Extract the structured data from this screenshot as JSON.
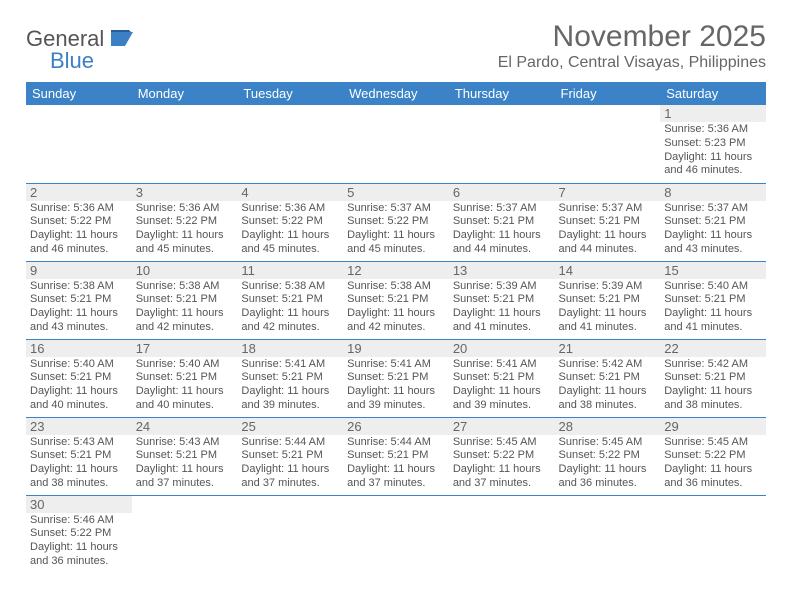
{
  "logo": {
    "text1": "General",
    "text2": "Blue"
  },
  "header": {
    "month_title": "November 2025",
    "location": "El Pardo, Central Visayas, Philippines"
  },
  "colors": {
    "header_bg": "#3b82c7",
    "header_text": "#ffffff",
    "body_text": "#555555",
    "daynum_bg": "#eeeeee",
    "border": "#3b82c7",
    "logo_accent": "#3b7fc4"
  },
  "day_names": [
    "Sunday",
    "Monday",
    "Tuesday",
    "Wednesday",
    "Thursday",
    "Friday",
    "Saturday"
  ],
  "weeks": [
    [
      null,
      null,
      null,
      null,
      null,
      null,
      {
        "n": "1",
        "sr": "Sunrise: 5:36 AM",
        "ss": "Sunset: 5:23 PM",
        "dl1": "Daylight: 11 hours",
        "dl2": "and 46 minutes."
      }
    ],
    [
      {
        "n": "2",
        "sr": "Sunrise: 5:36 AM",
        "ss": "Sunset: 5:22 PM",
        "dl1": "Daylight: 11 hours",
        "dl2": "and 46 minutes."
      },
      {
        "n": "3",
        "sr": "Sunrise: 5:36 AM",
        "ss": "Sunset: 5:22 PM",
        "dl1": "Daylight: 11 hours",
        "dl2": "and 45 minutes."
      },
      {
        "n": "4",
        "sr": "Sunrise: 5:36 AM",
        "ss": "Sunset: 5:22 PM",
        "dl1": "Daylight: 11 hours",
        "dl2": "and 45 minutes."
      },
      {
        "n": "5",
        "sr": "Sunrise: 5:37 AM",
        "ss": "Sunset: 5:22 PM",
        "dl1": "Daylight: 11 hours",
        "dl2": "and 45 minutes."
      },
      {
        "n": "6",
        "sr": "Sunrise: 5:37 AM",
        "ss": "Sunset: 5:21 PM",
        "dl1": "Daylight: 11 hours",
        "dl2": "and 44 minutes."
      },
      {
        "n": "7",
        "sr": "Sunrise: 5:37 AM",
        "ss": "Sunset: 5:21 PM",
        "dl1": "Daylight: 11 hours",
        "dl2": "and 44 minutes."
      },
      {
        "n": "8",
        "sr": "Sunrise: 5:37 AM",
        "ss": "Sunset: 5:21 PM",
        "dl1": "Daylight: 11 hours",
        "dl2": "and 43 minutes."
      }
    ],
    [
      {
        "n": "9",
        "sr": "Sunrise: 5:38 AM",
        "ss": "Sunset: 5:21 PM",
        "dl1": "Daylight: 11 hours",
        "dl2": "and 43 minutes."
      },
      {
        "n": "10",
        "sr": "Sunrise: 5:38 AM",
        "ss": "Sunset: 5:21 PM",
        "dl1": "Daylight: 11 hours",
        "dl2": "and 42 minutes."
      },
      {
        "n": "11",
        "sr": "Sunrise: 5:38 AM",
        "ss": "Sunset: 5:21 PM",
        "dl1": "Daylight: 11 hours",
        "dl2": "and 42 minutes."
      },
      {
        "n": "12",
        "sr": "Sunrise: 5:38 AM",
        "ss": "Sunset: 5:21 PM",
        "dl1": "Daylight: 11 hours",
        "dl2": "and 42 minutes."
      },
      {
        "n": "13",
        "sr": "Sunrise: 5:39 AM",
        "ss": "Sunset: 5:21 PM",
        "dl1": "Daylight: 11 hours",
        "dl2": "and 41 minutes."
      },
      {
        "n": "14",
        "sr": "Sunrise: 5:39 AM",
        "ss": "Sunset: 5:21 PM",
        "dl1": "Daylight: 11 hours",
        "dl2": "and 41 minutes."
      },
      {
        "n": "15",
        "sr": "Sunrise: 5:40 AM",
        "ss": "Sunset: 5:21 PM",
        "dl1": "Daylight: 11 hours",
        "dl2": "and 41 minutes."
      }
    ],
    [
      {
        "n": "16",
        "sr": "Sunrise: 5:40 AM",
        "ss": "Sunset: 5:21 PM",
        "dl1": "Daylight: 11 hours",
        "dl2": "and 40 minutes."
      },
      {
        "n": "17",
        "sr": "Sunrise: 5:40 AM",
        "ss": "Sunset: 5:21 PM",
        "dl1": "Daylight: 11 hours",
        "dl2": "and 40 minutes."
      },
      {
        "n": "18",
        "sr": "Sunrise: 5:41 AM",
        "ss": "Sunset: 5:21 PM",
        "dl1": "Daylight: 11 hours",
        "dl2": "and 39 minutes."
      },
      {
        "n": "19",
        "sr": "Sunrise: 5:41 AM",
        "ss": "Sunset: 5:21 PM",
        "dl1": "Daylight: 11 hours",
        "dl2": "and 39 minutes."
      },
      {
        "n": "20",
        "sr": "Sunrise: 5:41 AM",
        "ss": "Sunset: 5:21 PM",
        "dl1": "Daylight: 11 hours",
        "dl2": "and 39 minutes."
      },
      {
        "n": "21",
        "sr": "Sunrise: 5:42 AM",
        "ss": "Sunset: 5:21 PM",
        "dl1": "Daylight: 11 hours",
        "dl2": "and 38 minutes."
      },
      {
        "n": "22",
        "sr": "Sunrise: 5:42 AM",
        "ss": "Sunset: 5:21 PM",
        "dl1": "Daylight: 11 hours",
        "dl2": "and 38 minutes."
      }
    ],
    [
      {
        "n": "23",
        "sr": "Sunrise: 5:43 AM",
        "ss": "Sunset: 5:21 PM",
        "dl1": "Daylight: 11 hours",
        "dl2": "and 38 minutes."
      },
      {
        "n": "24",
        "sr": "Sunrise: 5:43 AM",
        "ss": "Sunset: 5:21 PM",
        "dl1": "Daylight: 11 hours",
        "dl2": "and 37 minutes."
      },
      {
        "n": "25",
        "sr": "Sunrise: 5:44 AM",
        "ss": "Sunset: 5:21 PM",
        "dl1": "Daylight: 11 hours",
        "dl2": "and 37 minutes."
      },
      {
        "n": "26",
        "sr": "Sunrise: 5:44 AM",
        "ss": "Sunset: 5:21 PM",
        "dl1": "Daylight: 11 hours",
        "dl2": "and 37 minutes."
      },
      {
        "n": "27",
        "sr": "Sunrise: 5:45 AM",
        "ss": "Sunset: 5:22 PM",
        "dl1": "Daylight: 11 hours",
        "dl2": "and 37 minutes."
      },
      {
        "n": "28",
        "sr": "Sunrise: 5:45 AM",
        "ss": "Sunset: 5:22 PM",
        "dl1": "Daylight: 11 hours",
        "dl2": "and 36 minutes."
      },
      {
        "n": "29",
        "sr": "Sunrise: 5:45 AM",
        "ss": "Sunset: 5:22 PM",
        "dl1": "Daylight: 11 hours",
        "dl2": "and 36 minutes."
      }
    ],
    [
      {
        "n": "30",
        "sr": "Sunrise: 5:46 AM",
        "ss": "Sunset: 5:22 PM",
        "dl1": "Daylight: 11 hours",
        "dl2": "and 36 minutes."
      },
      null,
      null,
      null,
      null,
      null,
      null
    ]
  ]
}
